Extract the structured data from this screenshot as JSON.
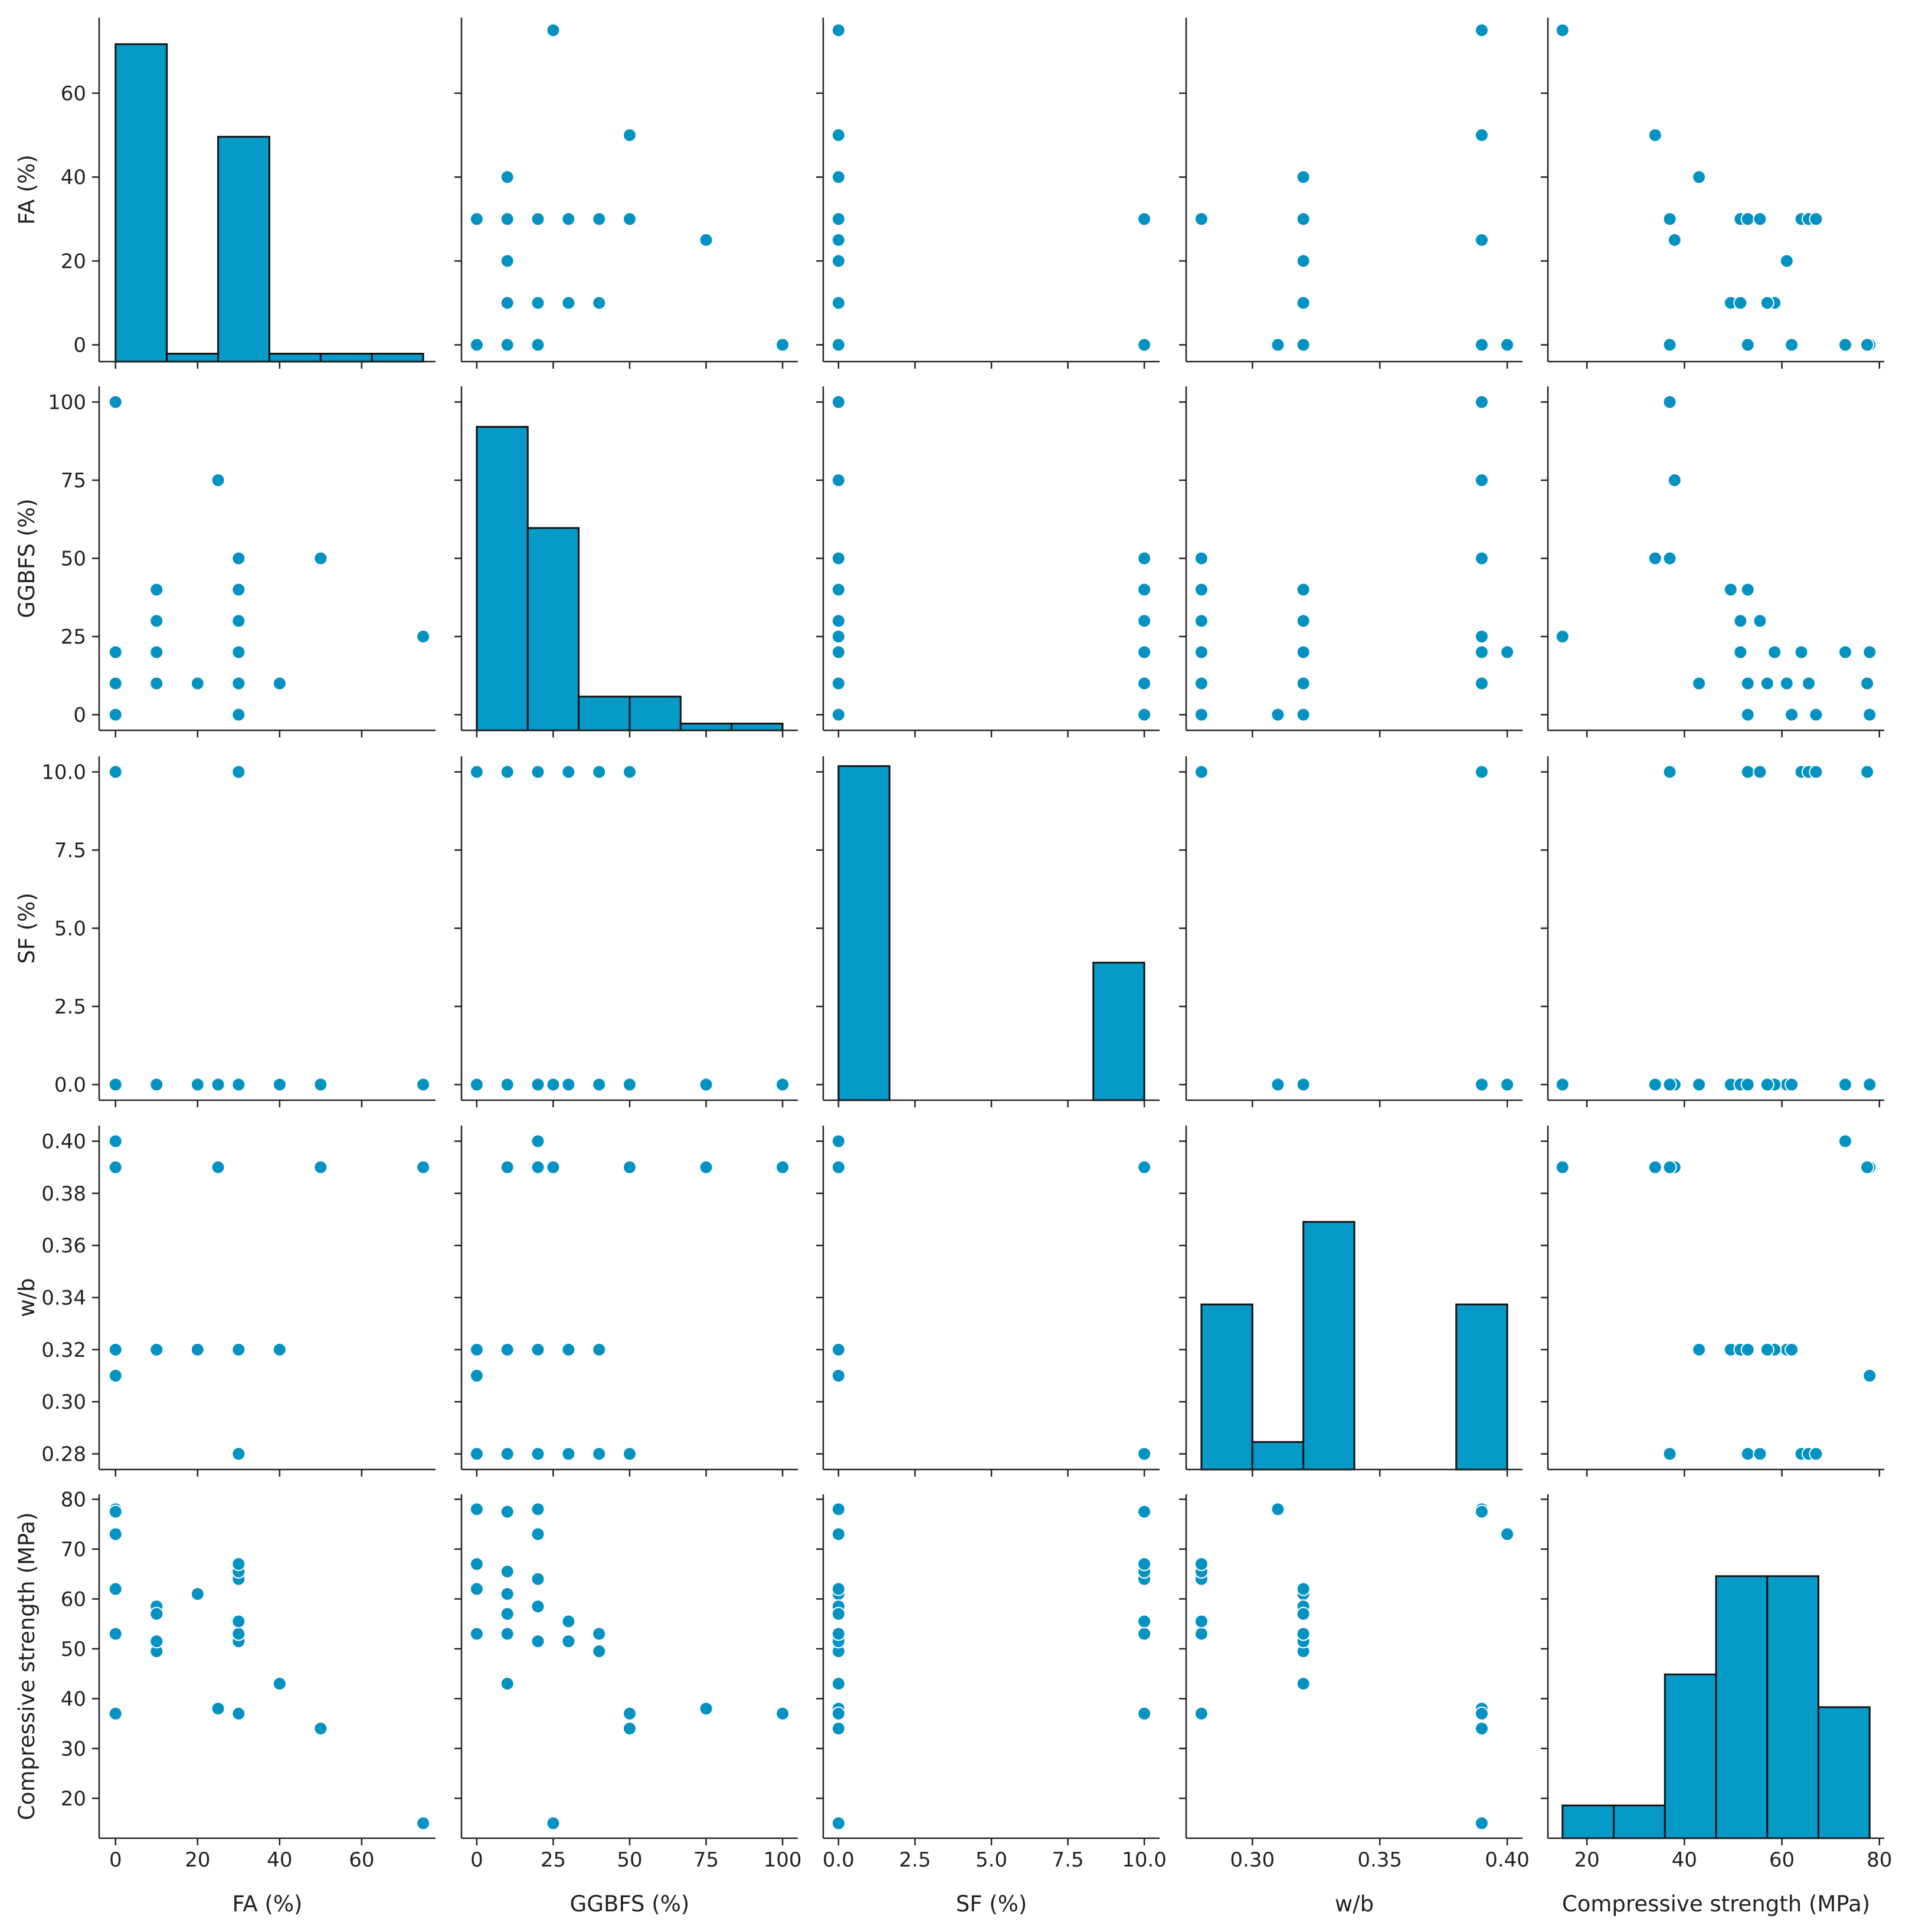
{
  "chart_data": {
    "type": "scatter",
    "subtype": "pair-plot",
    "marker_color": "#0492c2",
    "bar_color": "#069ac9",
    "edge_color": "#111111",
    "grid": false,
    "variables": [
      {
        "name": "FA (%)",
        "range": [
          -4,
          78
        ],
        "ticks": [
          {
            "v": 0,
            "label": "0"
          },
          {
            "v": 20,
            "label": "20"
          },
          {
            "v": 40,
            "label": "40"
          },
          {
            "v": 60,
            "label": "60"
          }
        ]
      },
      {
        "name": "GGBFS (%)",
        "range": [
          -5,
          105
        ],
        "ticks": [
          {
            "v": 0,
            "label": "0"
          },
          {
            "v": 25,
            "label": "25"
          },
          {
            "v": 50,
            "label": "50"
          },
          {
            "v": 75,
            "label": "75"
          },
          {
            "v": 100,
            "label": "100"
          }
        ]
      },
      {
        "name": "SF (%)",
        "range": [
          -0.5,
          10.5
        ],
        "ticks": [
          {
            "v": 0,
            "label": "0.0"
          },
          {
            "v": 2.5,
            "label": "2.5"
          },
          {
            "v": 5,
            "label": "5.0"
          },
          {
            "v": 7.5,
            "label": "7.5"
          },
          {
            "v": 10,
            "label": "10.0"
          }
        ]
      },
      {
        "name": "w/b",
        "range": [
          0.274,
          0.406
        ],
        "ticks_x": [
          {
            "v": 0.3,
            "label": "0.30"
          },
          {
            "v": 0.35,
            "label": "0.35"
          },
          {
            "v": 0.4,
            "label": "0.40"
          }
        ],
        "ticks_y": [
          {
            "v": 0.28,
            "label": "0.28"
          },
          {
            "v": 0.3,
            "label": "0.30"
          },
          {
            "v": 0.32,
            "label": "0.32"
          },
          {
            "v": 0.34,
            "label": "0.34"
          },
          {
            "v": 0.36,
            "label": "0.36"
          },
          {
            "v": 0.38,
            "label": "0.38"
          },
          {
            "v": 0.4,
            "label": "0.40"
          }
        ]
      },
      {
        "name": "Compressive strength (MPa)",
        "range": [
          12,
          81
        ],
        "ticks_x": [
          {
            "v": 20,
            "label": "20"
          },
          {
            "v": 40,
            "label": "40"
          },
          {
            "v": 60,
            "label": "60"
          },
          {
            "v": 80,
            "label": "80"
          }
        ],
        "ticks_y": [
          {
            "v": 20,
            "label": "20"
          },
          {
            "v": 30,
            "label": "30"
          },
          {
            "v": 40,
            "label": "40"
          },
          {
            "v": 50,
            "label": "50"
          },
          {
            "v": 60,
            "label": "60"
          },
          {
            "v": 70,
            "label": "70"
          },
          {
            "v": 80,
            "label": "80"
          }
        ]
      }
    ],
    "observations": [
      [
        75,
        25,
        0,
        0.39,
        15.0
      ],
      [
        50,
        50,
        0,
        0.39,
        34.0
      ],
      [
        25,
        75,
        0,
        0.39,
        38.0
      ],
      [
        0,
        100,
        0,
        0.39,
        37.0
      ],
      [
        0,
        20,
        0,
        0.39,
        78.0
      ],
      [
        0,
        20,
        0,
        0.4,
        73.0
      ],
      [
        40,
        10,
        0,
        0.32,
        43.0
      ],
      [
        30,
        20,
        0,
        0.32,
        51.5
      ],
      [
        30,
        0,
        0,
        0.32,
        53.0
      ],
      [
        20,
        10,
        0,
        0.32,
        61.0
      ],
      [
        10,
        40,
        0,
        0.32,
        49.5
      ],
      [
        10,
        30,
        0,
        0.32,
        51.5
      ],
      [
        10,
        20,
        0,
        0.32,
        58.5
      ],
      [
        10,
        10,
        0,
        0.32,
        57.0
      ],
      [
        0,
        10,
        0,
        0.32,
        53.0
      ],
      [
        0,
        0,
        0,
        0.32,
        62.0
      ],
      [
        0,
        0,
        0,
        0.31,
        78.0
      ],
      [
        30,
        50,
        10,
        0.28,
        37.0
      ],
      [
        30,
        40,
        10,
        0.28,
        53.0
      ],
      [
        30,
        30,
        10,
        0.28,
        55.5
      ],
      [
        30,
        20,
        10,
        0.28,
        64.0
      ],
      [
        30,
        10,
        10,
        0.28,
        65.5
      ],
      [
        30,
        0,
        10,
        0.28,
        67.0
      ],
      [
        0,
        10,
        10,
        0.39,
        77.5
      ]
    ],
    "histograms": [
      {
        "variable": "FA (%)",
        "bins": [
          0,
          12.5,
          25,
          37.5,
          50,
          62.5,
          75
        ],
        "counts": [
          12,
          0.3,
          8.5,
          0.3,
          0.3,
          0.3
        ],
        "ylim": [
          0,
          13
        ]
      },
      {
        "variable": "GGBFS (%)",
        "bins": [
          0,
          16.67,
          33.33,
          50,
          66.67,
          83.33,
          100
        ],
        "counts": [
          9,
          6,
          1,
          1,
          0.2,
          0.2
        ],
        "ylim": [
          0,
          10.2
        ]
      },
      {
        "variable": "SF (%)",
        "bins": [
          0,
          1.667,
          3.333,
          5,
          6.667,
          8.333,
          10
        ],
        "counts": [
          17,
          0,
          0,
          0,
          0,
          7
        ],
        "ylim": [
          0,
          17.5
        ]
      },
      {
        "variable": "w/b",
        "bins": [
          0.28,
          0.3,
          0.32,
          0.34,
          0.36,
          0.38,
          0.4
        ],
        "counts": [
          6,
          1,
          9,
          0,
          0,
          6
        ],
        "ylim": [
          0,
          12.5
        ]
      },
      {
        "variable": "Compressive strength (MPa)",
        "bins": [
          15,
          25.5,
          36,
          46.5,
          57,
          67.5,
          78
        ],
        "counts": [
          1,
          1,
          5,
          8,
          8,
          4
        ],
        "ylim": [
          0,
          10.5
        ]
      }
    ]
  }
}
